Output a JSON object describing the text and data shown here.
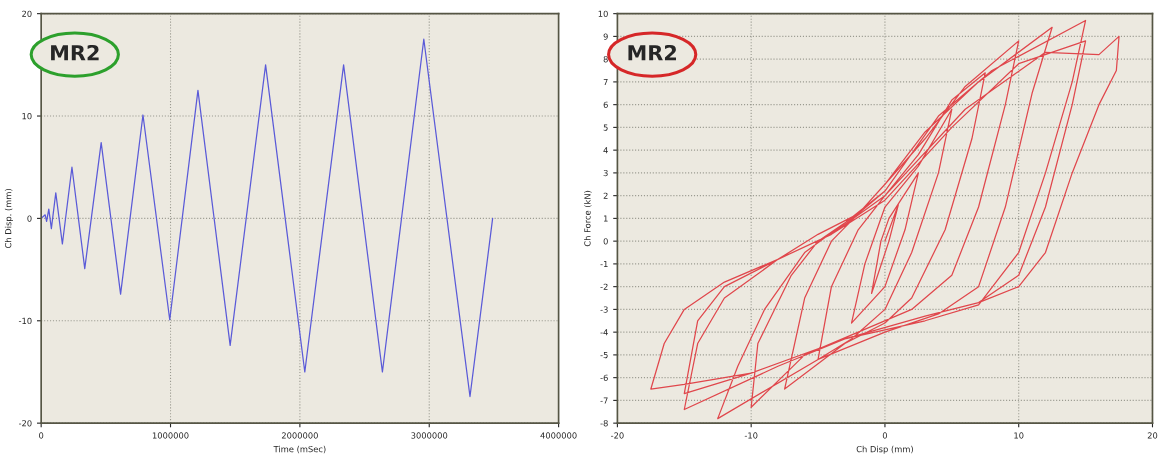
{
  "chart_data": [
    {
      "type": "line",
      "xlabel": "Time (mSec)",
      "ylabel": "Ch Disp. (mm)",
      "annotations": [
        "MR2"
      ],
      "series": [
        {
          "color": "#5a5ad8",
          "x": [
            0,
            31000,
            42000,
            59000,
            79000,
            113000,
            164000,
            238000,
            337000,
            464000,
            614000,
            787000,
            994000,
            1212000,
            1461000,
            1735000,
            2038000,
            2338000,
            2638000,
            2958000,
            3315000,
            3490000
          ],
          "values": [
            0,
            0.35,
            -0.3,
            0.9,
            -1,
            2.5,
            -2.5,
            5,
            -4.9,
            7.4,
            -7.4,
            10.1,
            -9.9,
            12.5,
            -12.4,
            15,
            -15,
            15,
            -15,
            17.5,
            -17.4,
            0
          ]
        }
      ],
      "xlim": [
        0,
        4000000
      ],
      "xticks": [
        0,
        1000000,
        2000000,
        3000000,
        4000000
      ],
      "ylim": [
        -20,
        20
      ],
      "yticks": [
        -20,
        -10,
        0,
        10,
        20
      ],
      "grid": true,
      "marker": "none",
      "line_style": "solid"
    },
    {
      "type": "line",
      "xlabel": "Ch Disp (mm)",
      "ylabel": "Ch Force (kN)",
      "annotations": [
        "MR2"
      ],
      "series": [
        {
          "color": "#e0474c",
          "x": [
            0,
            1.0,
            0.3,
            -1.0,
            -0.3,
            0.3,
            2.5,
            1.5,
            0,
            -2.5,
            -1.5,
            0,
            2.5,
            5.0,
            4,
            2,
            0,
            -2.5,
            -5,
            -4,
            -2,
            0,
            2.5,
            5,
            7.5,
            6.5,
            4.5,
            2,
            0,
            -3,
            -7.5,
            -6,
            -4,
            -2,
            0,
            3,
            6,
            10,
            9,
            7,
            5,
            2,
            -2,
            -6,
            -10,
            -9.5,
            -7,
            -5,
            -2,
            0,
            3,
            7,
            12.5,
            11,
            9,
            7,
            4,
            0,
            -5,
            -12.5,
            -11,
            -9,
            -6,
            -3,
            0,
            4,
            8,
            15,
            14,
            12,
            10,
            7,
            3,
            -3,
            -8,
            -15,
            -14,
            -12,
            -8,
            -4,
            0,
            5,
            10,
            15,
            14,
            12,
            10,
            7,
            3,
            -3,
            -10,
            -15,
            -14,
            -12,
            -8,
            -4,
            0,
            6,
            12,
            16,
            17.5,
            17.3,
            16,
            14,
            12,
            10,
            7,
            3,
            -3,
            -10,
            -15,
            -17.5,
            -16.5,
            -15,
            -12,
            -8,
            -5,
            -2,
            0
          ],
          "values": [
            0,
            1.6,
            0,
            -2.3,
            0,
            1.0,
            3.0,
            0.5,
            -2,
            -3.6,
            -1,
            1.5,
            3.3,
            5.8,
            3,
            -0.5,
            -3,
            -4.3,
            -5.2,
            -2,
            0.5,
            2.0,
            3.8,
            6.2,
            7.4,
            4.5,
            0.5,
            -2.5,
            -3.6,
            -4.5,
            -6.5,
            -2.5,
            0,
            1.2,
            2.5,
            4.5,
            6.8,
            8.8,
            6,
            1.5,
            -1.5,
            -3.0,
            -4.0,
            -5,
            -7.3,
            -4.5,
            -1.5,
            0,
            1.2,
            2.5,
            4.8,
            7,
            9.4,
            6.5,
            1.5,
            -2,
            -3.2,
            -4,
            -5.2,
            -7.8,
            -5.5,
            -3,
            -0.5,
            0.8,
            2.2,
            5.5,
            7.5,
            9.7,
            7,
            3,
            -0.5,
            -2.8,
            -3.5,
            -4.3,
            -5.5,
            -7.4,
            -4.5,
            -2.5,
            -0.8,
            0.3,
            1.8,
            5,
            7.8,
            8.8,
            6,
            1.5,
            -1.5,
            -2.7,
            -3.3,
            -4.3,
            -5.8,
            -6.7,
            -3.5,
            -2,
            -0.8,
            0.3,
            2,
            5.8,
            8.3,
            8.2,
            9.0,
            7.5,
            6,
            3,
            -0.5,
            -2,
            -2.7,
            -3.3,
            -4.3,
            -5.8,
            -6.3,
            -6.5,
            -4.5,
            -3,
            -1.8,
            -0.8,
            0.3,
            1.2,
            2.2
          ]
        }
      ],
      "xlim": [
        -20,
        20
      ],
      "xticks": [
        -20,
        -10,
        0,
        10,
        20
      ],
      "ylim": [
        -8,
        10
      ],
      "yticks": [
        -8,
        -7,
        -6,
        -5,
        -4,
        -3,
        -2,
        -1,
        0,
        1,
        2,
        3,
        4,
        5,
        6,
        7,
        8,
        9,
        10
      ],
      "grid": true,
      "marker": "none",
      "line_style": "solid"
    }
  ]
}
